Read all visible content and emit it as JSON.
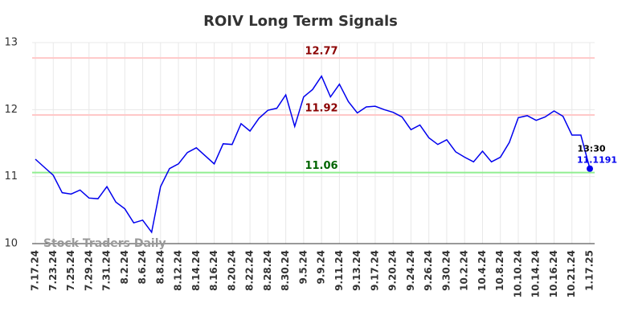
{
  "chart_data": {
    "type": "line",
    "title": "ROIV Long Term Signals",
    "categories": [
      "7.17.24",
      null,
      "7.23.24",
      null,
      "7.25.24",
      null,
      "7.29.24",
      null,
      "7.31.24",
      null,
      "8.2.24",
      null,
      "8.6.24",
      null,
      "8.8.24",
      null,
      "8.12.24",
      null,
      "8.14.24",
      null,
      "8.16.24",
      null,
      "8.20.24",
      null,
      "8.22.24",
      null,
      "8.28.24",
      null,
      "8.30.24",
      null,
      "9.5.24",
      null,
      "9.9.24",
      null,
      "9.11.24",
      null,
      "9.13.24",
      null,
      "9.17.24",
      null,
      "9.20.24",
      null,
      "9.24.24",
      null,
      "9.26.24",
      null,
      "9.30.24",
      null,
      "10.2.24",
      null,
      "10.4.24",
      null,
      "10.8.24",
      null,
      "10.10.24",
      null,
      "10.14.24",
      null,
      "10.16.24",
      null,
      "10.21.24",
      null,
      "1.17.25"
    ],
    "values": [
      11.26,
      11.14,
      11.02,
      10.76,
      10.74,
      10.8,
      10.68,
      10.67,
      10.85,
      10.62,
      10.52,
      10.31,
      10.35,
      10.17,
      10.85,
      11.12,
      11.19,
      11.36,
      11.43,
      11.31,
      11.19,
      11.49,
      11.48,
      11.79,
      11.68,
      11.87,
      11.99,
      12.02,
      12.22,
      11.75,
      12.19,
      12.3,
      12.5,
      12.19,
      12.38,
      12.12,
      11.95,
      12.04,
      12.05,
      12.0,
      11.96,
      11.89,
      11.7,
      11.77,
      11.58,
      11.48,
      11.55,
      11.37,
      11.29,
      11.22,
      11.38,
      11.22,
      11.29,
      11.51,
      11.88,
      11.91,
      11.84,
      11.89,
      11.98,
      11.9,
      11.62,
      11.62,
      11.1191
    ],
    "color": "#0000ee",
    "ylim": [
      10,
      13
    ],
    "yticks": [
      10,
      11,
      12,
      13
    ],
    "grid": true,
    "hlines": [
      {
        "value": 12.77,
        "line_color": "#ffc8c8",
        "label_color": "#8b0000"
      },
      {
        "value": 11.92,
        "line_color": "#ffc8c8",
        "label_color": "#8b0000"
      },
      {
        "value": 11.06,
        "line_color": "#90ee90",
        "label_color": "#006400"
      }
    ],
    "last_time": "13:30",
    "watermark": "Stock Traders Daily"
  }
}
